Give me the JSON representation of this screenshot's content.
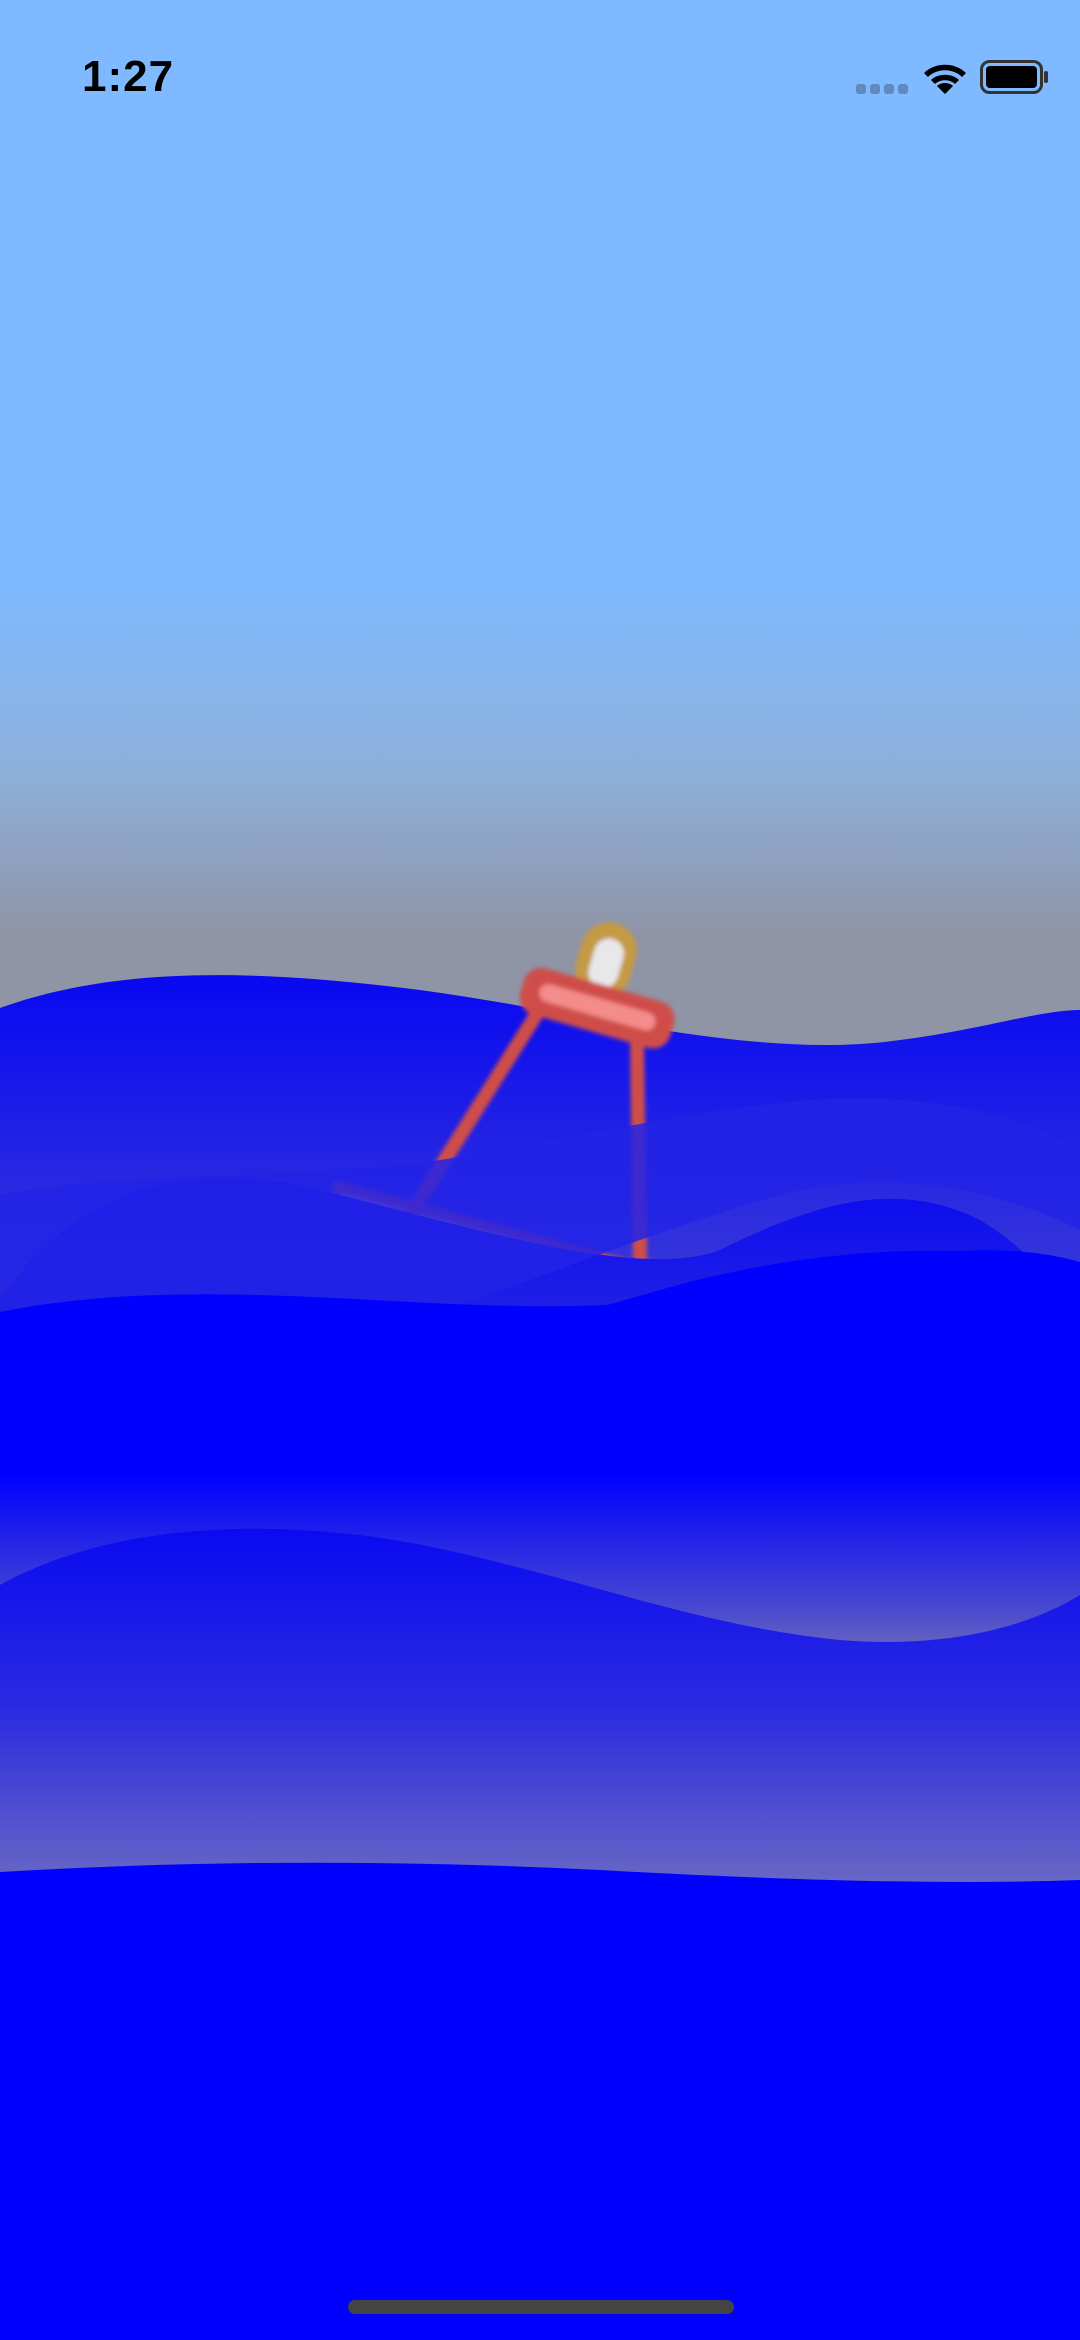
{
  "status_bar": {
    "time": "1:27",
    "signal_icon": "cellular-signal-icon",
    "wifi_icon": "wifi-icon",
    "battery_icon": "battery-full-icon"
  },
  "scene": {
    "sky_color": "#7fb9ff",
    "water_color": "#0000ff",
    "buoy_color": "#d0504a",
    "lamp_color": "#c9a04a"
  }
}
